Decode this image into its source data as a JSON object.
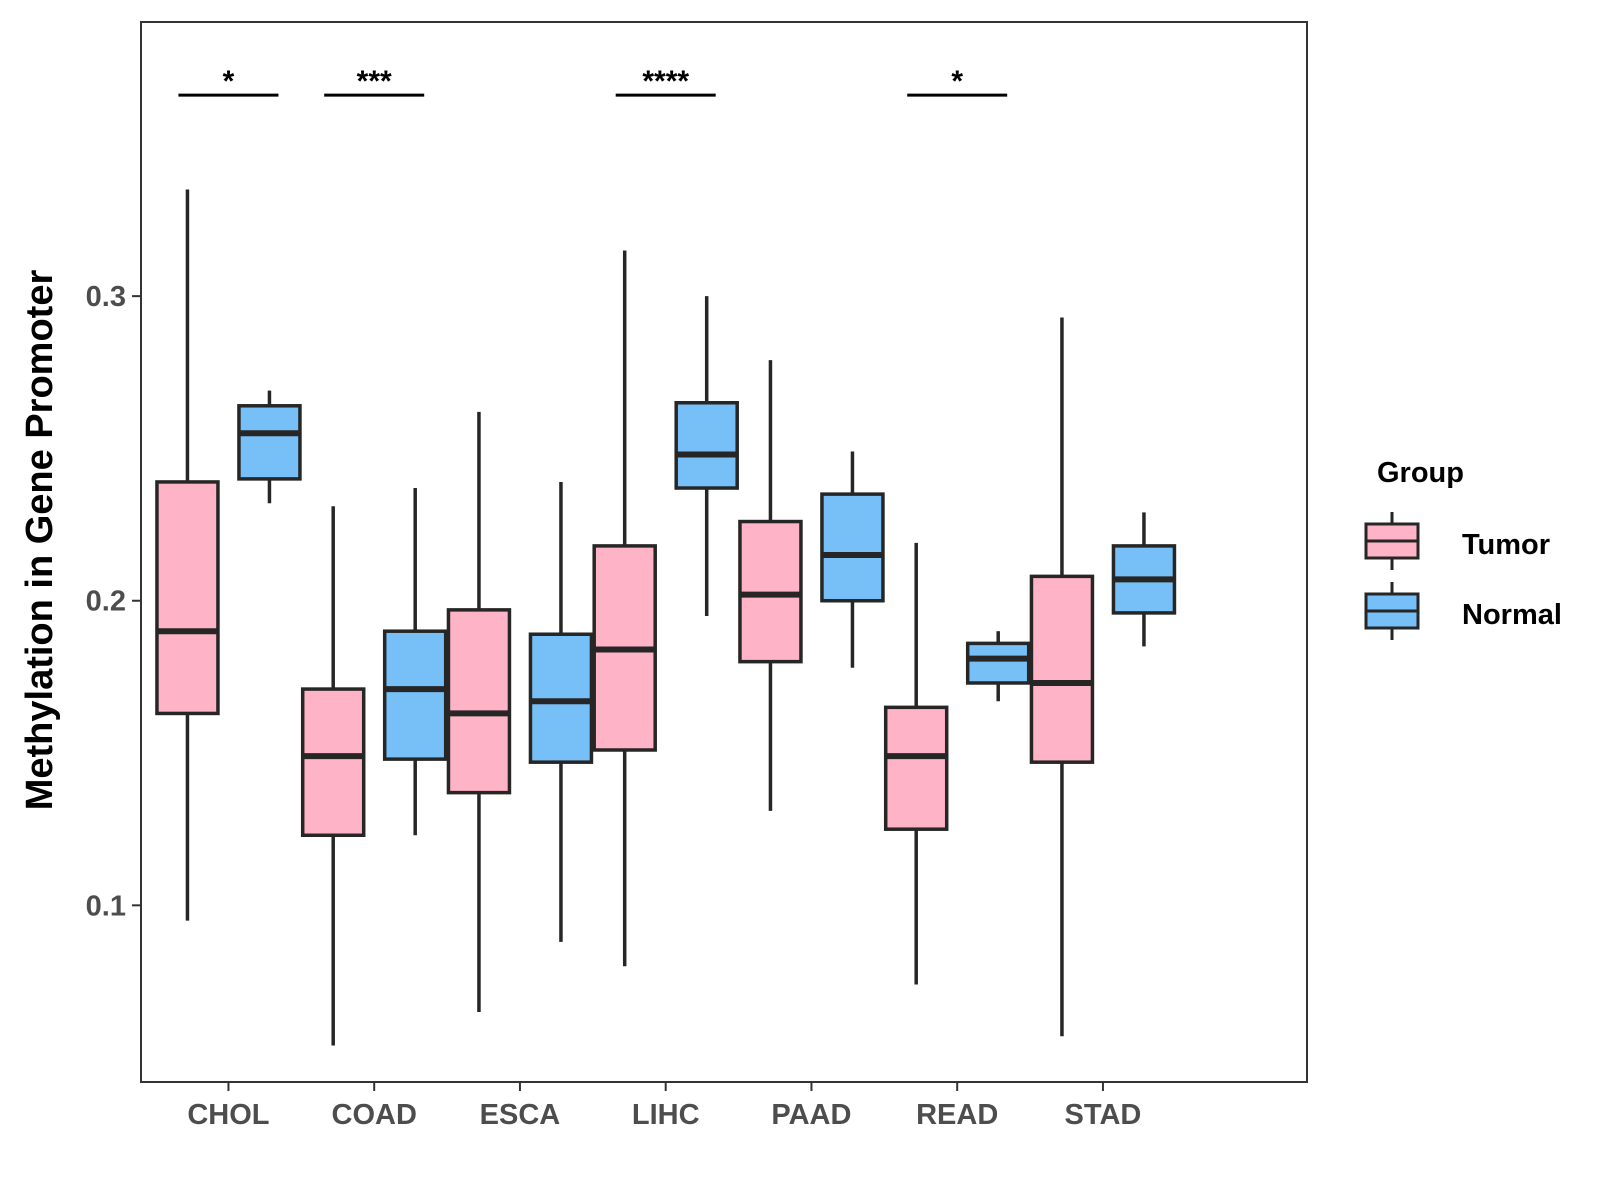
{
  "chart_data": {
    "type": "boxplot",
    "title": "",
    "xlabel": "",
    "ylabel": "Methylation in Gene Promoter",
    "ylim": [
      0.042,
      0.39
    ],
    "yticks": [
      0.1,
      0.2,
      0.3
    ],
    "ytick_labels": [
      "0.1",
      "0.2",
      "0.3"
    ],
    "grid": false,
    "categories": [
      "CHOL",
      "COAD",
      "ESCA",
      "LIHC",
      "PAAD",
      "READ",
      "STAD"
    ],
    "legend": {
      "title": "Group",
      "position": "right",
      "entries": [
        "Tumor",
        "Normal"
      ]
    },
    "series": [
      {
        "name": "Tumor",
        "color": "#ffb3c6",
        "boxes": [
          {
            "category": "CHOL",
            "min": 0.095,
            "q1": 0.163,
            "median": 0.19,
            "q3": 0.239,
            "max": 0.335
          },
          {
            "category": "COAD",
            "min": 0.054,
            "q1": 0.123,
            "median": 0.149,
            "q3": 0.171,
            "max": 0.231
          },
          {
            "category": "ESCA",
            "min": 0.065,
            "q1": 0.137,
            "median": 0.163,
            "q3": 0.197,
            "max": 0.262
          },
          {
            "category": "LIHC",
            "min": 0.08,
            "q1": 0.151,
            "median": 0.184,
            "q3": 0.218,
            "max": 0.315
          },
          {
            "category": "PAAD",
            "min": 0.131,
            "q1": 0.18,
            "median": 0.202,
            "q3": 0.226,
            "max": 0.279
          },
          {
            "category": "READ",
            "min": 0.074,
            "q1": 0.125,
            "median": 0.149,
            "q3": 0.165,
            "max": 0.219
          },
          {
            "category": "STAD",
            "min": 0.057,
            "q1": 0.147,
            "median": 0.173,
            "q3": 0.208,
            "max": 0.293
          }
        ]
      },
      {
        "name": "Normal",
        "color": "#76bff7",
        "boxes": [
          {
            "category": "CHOL",
            "min": 0.232,
            "q1": 0.24,
            "median": 0.255,
            "q3": 0.264,
            "max": 0.269
          },
          {
            "category": "COAD",
            "min": 0.123,
            "q1": 0.148,
            "median": 0.171,
            "q3": 0.19,
            "max": 0.237
          },
          {
            "category": "ESCA",
            "min": 0.088,
            "q1": 0.147,
            "median": 0.167,
            "q3": 0.189,
            "max": 0.239
          },
          {
            "category": "LIHC",
            "min": 0.195,
            "q1": 0.237,
            "median": 0.248,
            "q3": 0.265,
            "max": 0.3
          },
          {
            "category": "PAAD",
            "min": 0.178,
            "q1": 0.2,
            "median": 0.215,
            "q3": 0.235,
            "max": 0.249
          },
          {
            "category": "READ",
            "min": 0.167,
            "q1": 0.173,
            "median": 0.181,
            "q3": 0.186,
            "max": 0.19
          },
          {
            "category": "STAD",
            "min": 0.185,
            "q1": 0.196,
            "median": 0.207,
            "q3": 0.218,
            "max": 0.229
          }
        ]
      }
    ],
    "significance": [
      {
        "category": "CHOL",
        "label": "*",
        "y": 0.366
      },
      {
        "category": "COAD",
        "label": "***",
        "y": 0.366
      },
      {
        "category": "LIHC",
        "label": "****",
        "y": 0.366
      },
      {
        "category": "READ",
        "label": "*",
        "y": 0.366
      }
    ]
  }
}
